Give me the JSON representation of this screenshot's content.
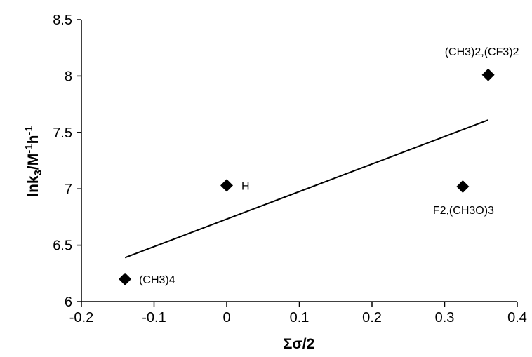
{
  "chart_data": {
    "type": "scatter",
    "title": "",
    "xlabel": "Σσ/2",
    "ylabel_parts": {
      "base": "lnk",
      "sub": "3",
      "mid": "/M",
      "sup1": "-1",
      "h": "h",
      "sup2": "-1"
    },
    "xlim": [
      -0.2,
      0.4
    ],
    "ylim": [
      6,
      8.5
    ],
    "x_ticks": [
      "-0.2",
      "-0.1",
      "0",
      "0.1",
      "0.2",
      "0.3",
      "0.4"
    ],
    "y_ticks": [
      "6",
      "6.5",
      "7",
      "7.5",
      "8",
      "8.5"
    ],
    "grid": false,
    "legend": "none",
    "marker": "diamond",
    "points": [
      {
        "x": -0.14,
        "y": 6.2,
        "label": "(CH3)4"
      },
      {
        "x": 0.0,
        "y": 7.03,
        "label": "H"
      },
      {
        "x": 0.325,
        "y": 7.02,
        "label": "F2,(CH3O)3"
      },
      {
        "x": 0.36,
        "y": 8.01,
        "label": "(CH3)2,(CF3)2"
      }
    ],
    "trendline": {
      "x": [
        -0.14,
        0.36
      ],
      "y": [
        6.39,
        7.61
      ]
    },
    "colors": {
      "marker": "#000000",
      "line": "#000000",
      "axis": "#000000"
    }
  }
}
